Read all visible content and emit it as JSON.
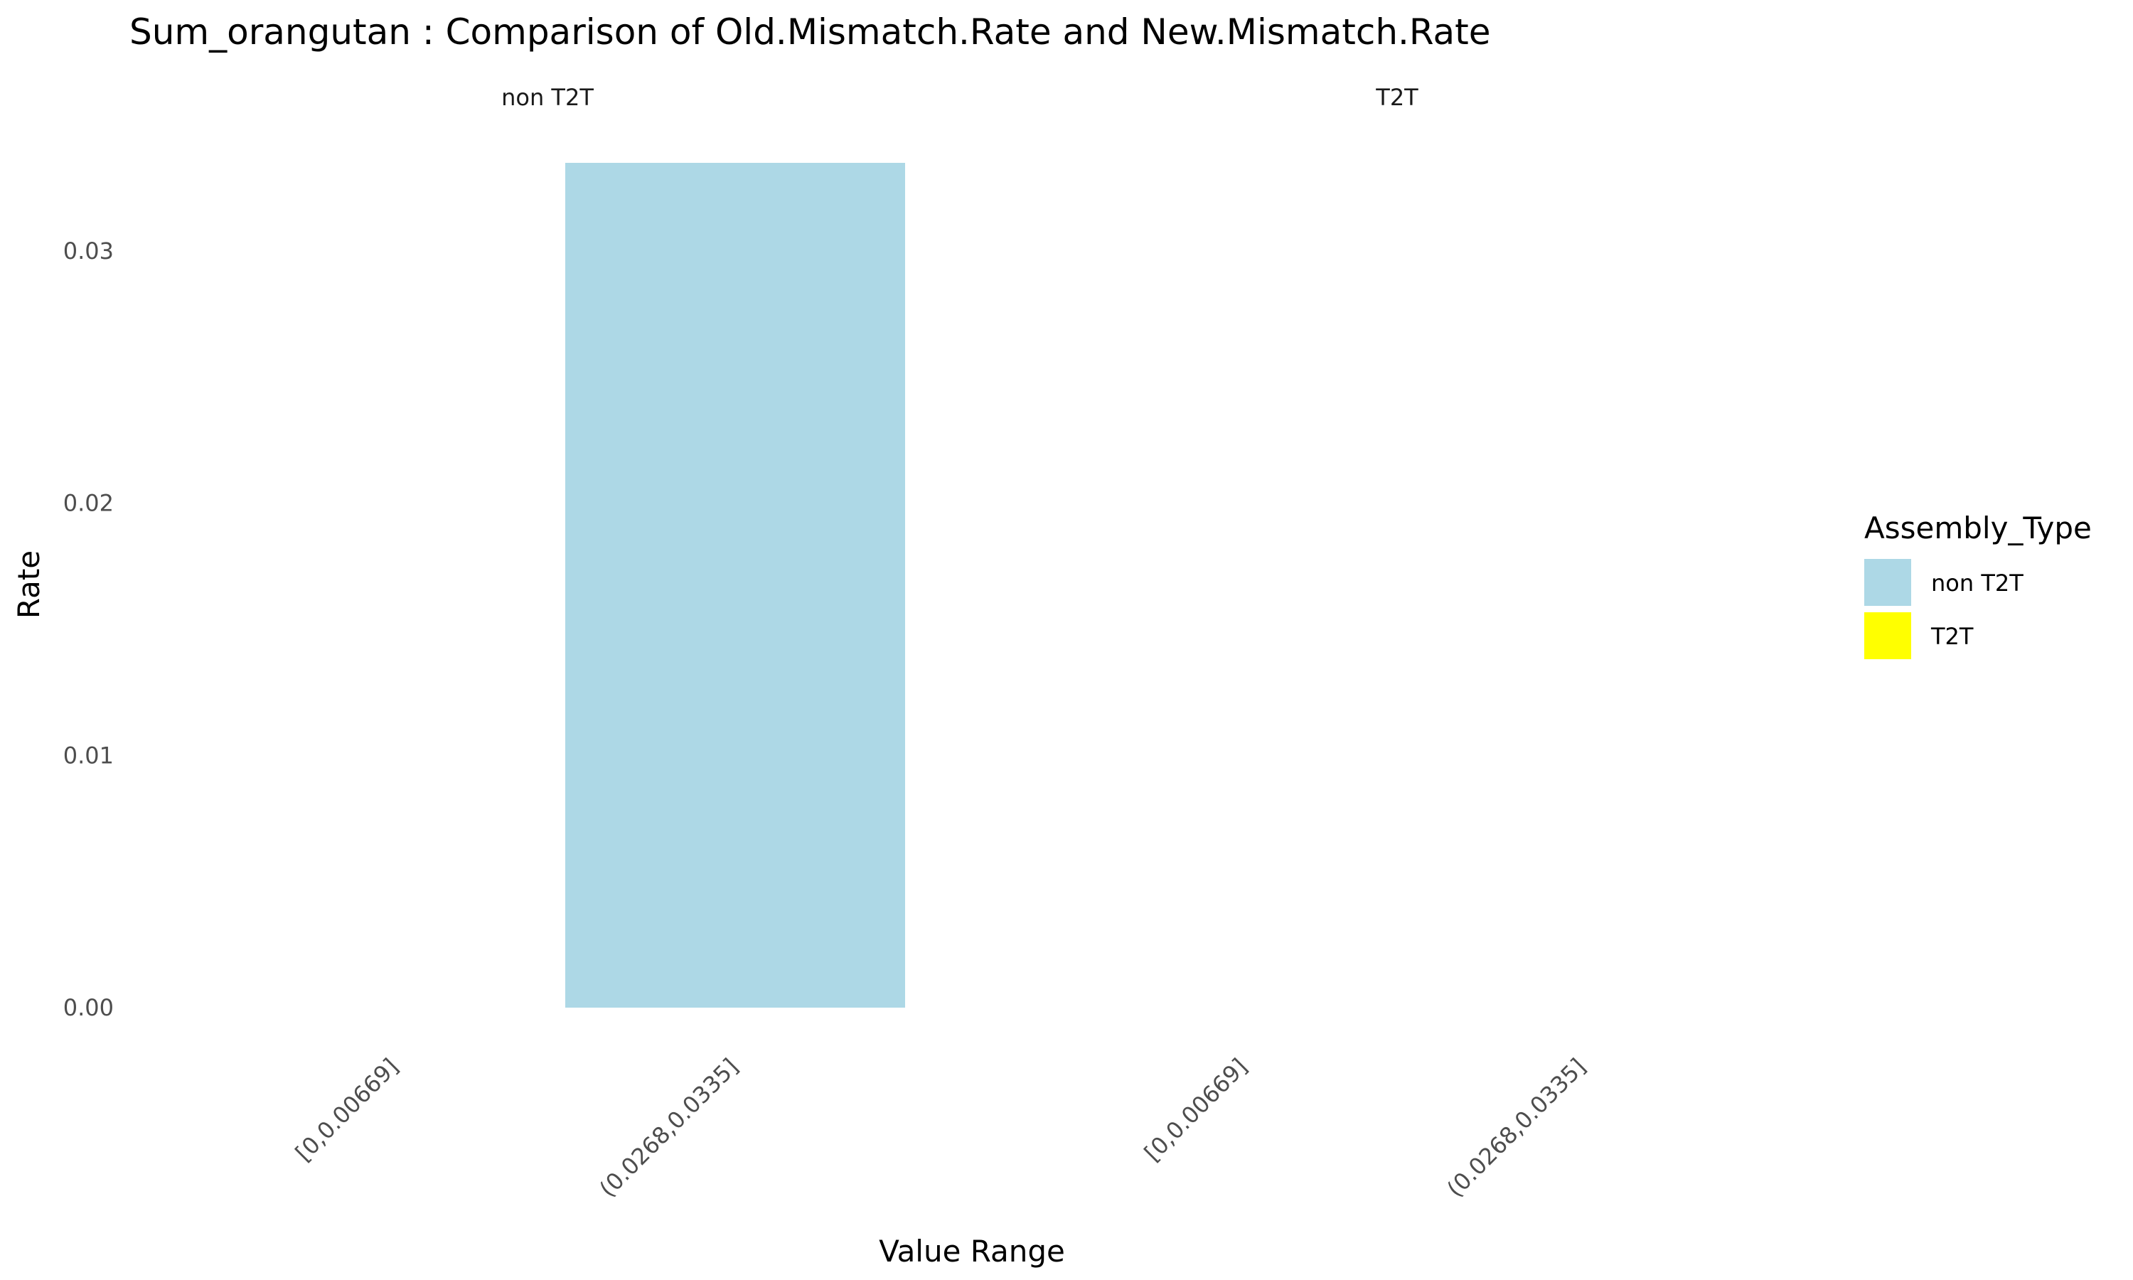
{
  "chart_data": {
    "type": "bar",
    "title": "Sum_orangutan : Comparison of Old.Mismatch.Rate and New.Mismatch.Rate",
    "xlabel": "Value Range",
    "ylabel": "Rate",
    "ylim": [
      0,
      0.0335
    ],
    "yticks": [
      "0.00",
      "0.01",
      "0.02",
      "0.03"
    ],
    "ytick_values": [
      0,
      0.01,
      0.02,
      0.03
    ],
    "facets": [
      {
        "label": "non T2T",
        "categories": [
          "[0,0.00669]",
          "(0.0268,0.0335]"
        ],
        "values": [
          0,
          0.0335
        ],
        "fill": "lightblue"
      },
      {
        "label": "T2T",
        "categories": [
          "[0,0.00669]",
          "(0.0268,0.0335]"
        ],
        "values": [
          0,
          0
        ],
        "fill": "yellow"
      }
    ],
    "legend": {
      "title": "Assembly_Type",
      "position": "right",
      "entries": [
        {
          "label": "non T2T",
          "color": "#add8e6"
        },
        {
          "label": "T2T",
          "color": "#ffff00"
        }
      ]
    },
    "colors": {
      "non T2T": "#add8e6",
      "T2T": "#ffff00"
    },
    "grid": false
  }
}
